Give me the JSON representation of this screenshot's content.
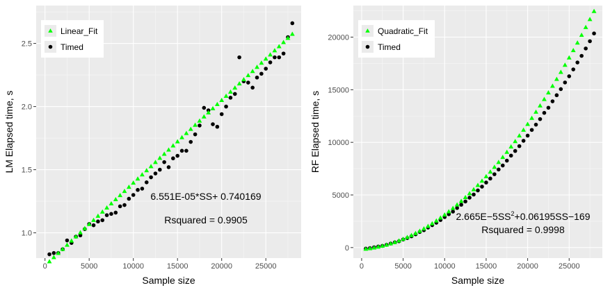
{
  "chart_data": [
    {
      "type": "scatter",
      "xlabel": "Sample size",
      "ylabel": "LM Elapsed time, s",
      "xlim": [
        -1000,
        29000
      ],
      "ylim": [
        0.8,
        2.8
      ],
      "x_ticks": [
        0,
        5000,
        10000,
        15000,
        20000,
        25000
      ],
      "y_ticks": [
        1.0,
        1.5,
        2.0,
        2.5
      ],
      "x_tick_labels": [
        "0",
        "5000",
        "10000",
        "15000",
        "20000",
        "25000"
      ],
      "y_tick_labels": [
        "1.0",
        "1.5",
        "2.0",
        "2.5"
      ],
      "grid": true,
      "legend_position": "top-left",
      "annotations": {
        "equation": "6.551E-05*SS+ 0.740169",
        "rsquared": "Rsquared = 0.9905"
      },
      "series": [
        {
          "name": "Linear_Fit",
          "marker": "triangle",
          "color": "#00ff00",
          "fit": {
            "slope": 6.551e-05,
            "intercept": 0.740169
          },
          "x": [
            500,
            1000,
            1500,
            2000,
            2500,
            3000,
            3500,
            4000,
            4500,
            5000,
            5500,
            6000,
            6500,
            7000,
            7500,
            8000,
            8500,
            9000,
            9500,
            10000,
            10500,
            11000,
            11500,
            12000,
            12500,
            13000,
            13500,
            14000,
            14500,
            15000,
            15500,
            16000,
            16500,
            17000,
            17500,
            18000,
            18500,
            19000,
            19500,
            20000,
            20500,
            21000,
            21500,
            22000,
            22500,
            23000,
            23500,
            24000,
            24500,
            25000,
            25500,
            26000,
            26500,
            27000,
            27500,
            28000
          ]
        },
        {
          "name": "Timed",
          "marker": "circle",
          "color": "#000000",
          "x": [
            500,
            1000,
            1500,
            2000,
            2500,
            3000,
            3500,
            4000,
            4500,
            5000,
            5500,
            6000,
            6500,
            7000,
            7500,
            8000,
            8500,
            9000,
            9500,
            10000,
            10500,
            11000,
            11500,
            12000,
            12500,
            13000,
            13500,
            14000,
            14500,
            15000,
            15500,
            16000,
            16500,
            17000,
            17500,
            18000,
            18500,
            19000,
            19500,
            20000,
            20500,
            21000,
            21500,
            22000,
            22500,
            23000,
            23500,
            24000,
            24500,
            25000,
            25500,
            26000,
            26500,
            27000,
            27500,
            28000
          ],
          "y": [
            0.83,
            0.84,
            0.84,
            0.87,
            0.94,
            0.92,
            0.97,
            0.98,
            1.03,
            1.07,
            1.06,
            1.09,
            1.1,
            1.14,
            1.15,
            1.16,
            1.21,
            1.22,
            1.27,
            1.3,
            1.34,
            1.35,
            1.4,
            1.44,
            1.47,
            1.5,
            1.56,
            1.52,
            1.59,
            1.61,
            1.65,
            1.65,
            1.72,
            1.78,
            1.85,
            1.99,
            1.97,
            1.86,
            1.84,
            1.94,
            2.0,
            2.07,
            2.1,
            2.39,
            2.2,
            2.19,
            2.15,
            2.23,
            2.26,
            2.3,
            2.35,
            2.39,
            2.39,
            2.42,
            2.55,
            2.66
          ]
        }
      ]
    },
    {
      "type": "scatter",
      "xlabel": "Sample size",
      "ylabel": "RF Elapsed time, s",
      "xlim": [
        -1000,
        29000
      ],
      "ylim": [
        -1000,
        23000
      ],
      "x_ticks": [
        0,
        5000,
        10000,
        15000,
        20000,
        25000
      ],
      "y_ticks": [
        0,
        5000,
        10000,
        15000,
        20000
      ],
      "x_tick_labels": [
        "0",
        "5000",
        "10000",
        "15000",
        "20000",
        "25000"
      ],
      "y_tick_labels": [
        "0",
        "5000",
        "10000",
        "15000",
        "20000"
      ],
      "grid": true,
      "legend_position": "top-left",
      "annotations": {
        "equation_prefix": "2.665E−5SS",
        "equation_superscript": "2",
        "equation_suffix": "+0.06195SS−169",
        "rsquared": "Rsquared = 0.9998"
      },
      "series": [
        {
          "name": "Quadratic_Fit",
          "marker": "triangle",
          "color": "#00ff00",
          "fit": {
            "a": 2.665e-05,
            "b": 0.06195,
            "c": -169
          },
          "x": [
            500,
            1000,
            1500,
            2000,
            2500,
            3000,
            3500,
            4000,
            4500,
            5000,
            5500,
            6000,
            6500,
            7000,
            7500,
            8000,
            8500,
            9000,
            9500,
            10000,
            10500,
            11000,
            11500,
            12000,
            12500,
            13000,
            13500,
            14000,
            14500,
            15000,
            15500,
            16000,
            16500,
            17000,
            17500,
            18000,
            18500,
            19000,
            19500,
            20000,
            20500,
            21000,
            21500,
            22000,
            22500,
            23000,
            23500,
            24000,
            24500,
            25000,
            25500,
            26000,
            26500,
            27000,
            27500,
            28000
          ]
        },
        {
          "name": "Timed",
          "marker": "circle",
          "color": "#000000",
          "x": [
            500,
            1000,
            1500,
            2000,
            2500,
            3000,
            3500,
            4000,
            4500,
            5000,
            5500,
            6000,
            6500,
            7000,
            7500,
            8000,
            8500,
            9000,
            9500,
            10000,
            10500,
            11000,
            11500,
            12000,
            12500,
            13000,
            13500,
            14000,
            14500,
            15000,
            15500,
            16000,
            16500,
            17000,
            17500,
            18000,
            18500,
            19000,
            19500,
            20000,
            20500,
            21000,
            21500,
            22000,
            22500,
            23000,
            23500,
            24000,
            24500,
            25000,
            25500,
            26000,
            26500,
            27000,
            27500,
            28000
          ],
          "y": [
            -100,
            -50,
            30,
            100,
            160,
            260,
            380,
            500,
            600,
            770,
            900,
            1070,
            1260,
            1480,
            1650,
            1900,
            2130,
            2360,
            2620,
            2900,
            3170,
            3420,
            3760,
            4070,
            4380,
            4740,
            5040,
            5430,
            5790,
            6180,
            6560,
            6970,
            7420,
            7800,
            8260,
            8740,
            9180,
            9640,
            10150,
            10640,
            11180,
            11680,
            12210,
            12800,
            13290,
            13900,
            14480,
            15060,
            15690,
            16280,
            16930,
            17590,
            18220,
            18920,
            19610,
            20350
          ]
        }
      ]
    }
  ]
}
